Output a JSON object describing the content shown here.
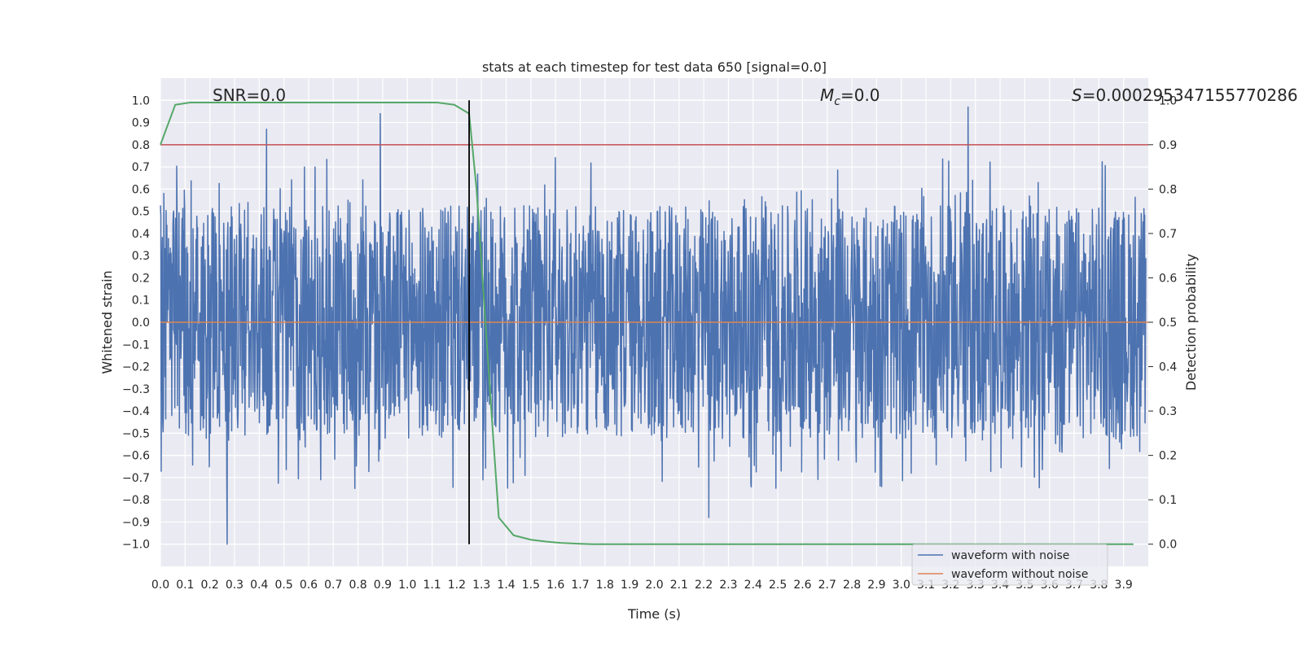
{
  "chart_data": {
    "type": "line",
    "title": "stats at each timestep for test data 650 [signal=0.0]",
    "xlabel": "Time (s)",
    "ylabel": "Whitened strain",
    "y2label": "Detection probability",
    "xlim": [
      0.0,
      4.0
    ],
    "ylim": [
      -1.1,
      1.1
    ],
    "y2lim": [
      -0.05,
      1.05
    ],
    "xticks": [
      0.0,
      0.1,
      0.2,
      0.3,
      0.4,
      0.5,
      0.6,
      0.7,
      0.8,
      0.9,
      1.0,
      1.1,
      1.2,
      1.3,
      1.4,
      1.5,
      1.6,
      1.7,
      1.8,
      1.9,
      2.0,
      2.1,
      2.2,
      2.3,
      2.4,
      2.5,
      2.6,
      2.7,
      2.8,
      2.9,
      3.0,
      3.1,
      3.2,
      3.3,
      3.4,
      3.5,
      3.6,
      3.7,
      3.8,
      3.9
    ],
    "yticks": [
      1.0,
      0.9,
      0.8,
      0.7,
      0.6,
      0.5,
      0.4,
      0.3,
      0.2,
      0.1,
      0.0,
      -0.1,
      -0.2,
      -0.3,
      -0.4,
      -0.5,
      -0.6,
      -0.7,
      -0.8,
      -0.9,
      -1.0
    ],
    "y2ticks": [
      1.0,
      0.9,
      0.8,
      0.7,
      0.6,
      0.5,
      0.4,
      0.3,
      0.2,
      0.1,
      0.0
    ],
    "annotations": {
      "snr": "SNR=0.0",
      "mc_symbol": "M",
      "mc_sub": "c",
      "mc_value": "=0.0",
      "s_symbol": "S",
      "s_value": "=0.000295347155770286"
    },
    "legend": {
      "location": "lower right",
      "entries": [
        {
          "label": "waveform with noise",
          "color": "#4c72b0"
        },
        {
          "label": "waveform without noise",
          "color": "#dd8452"
        }
      ]
    },
    "series": [
      {
        "name": "waveform with noise",
        "color": "#4c72b0",
        "axis": "left",
        "description": "whitened strain noise, approx. uniform in [-0.6, 0.6] with spikes to ±1.0, sampled over 0–4 s",
        "peaks": [
          [
            0.27,
            -1.0
          ],
          [
            3.27,
            0.97
          ],
          [
            0.89,
            0.94
          ],
          [
            0.43,
            0.87
          ],
          [
            2.22,
            -0.88
          ]
        ]
      },
      {
        "name": "waveform without noise",
        "color": "#dd8452",
        "axis": "left",
        "x": [
          0.0,
          4.0
        ],
        "values": [
          0.0,
          0.0
        ]
      },
      {
        "name": "detection probability",
        "color": "#55a868",
        "axis": "right",
        "x": [
          0.0,
          0.06,
          0.12,
          0.25,
          0.5,
          0.75,
          1.0,
          1.12,
          1.19,
          1.25,
          1.28,
          1.31,
          1.34,
          1.37,
          1.43,
          1.5,
          1.56,
          1.62,
          1.69,
          1.75,
          2.0,
          2.5,
          3.0,
          3.5,
          3.94
        ],
        "values": [
          0.9,
          0.99,
          0.995,
          0.995,
          0.995,
          0.995,
          0.995,
          0.995,
          0.99,
          0.97,
          0.8,
          0.55,
          0.3,
          0.06,
          0.02,
          0.01,
          0.006,
          0.003,
          0.001,
          0.0,
          0.0,
          0.0,
          0.0,
          0.0,
          0.0
        ]
      }
    ],
    "threshold": {
      "value": 0.9,
      "axis": "right",
      "color": "#c44e52"
    },
    "marker_time": 1.25,
    "random_seed": 650
  }
}
